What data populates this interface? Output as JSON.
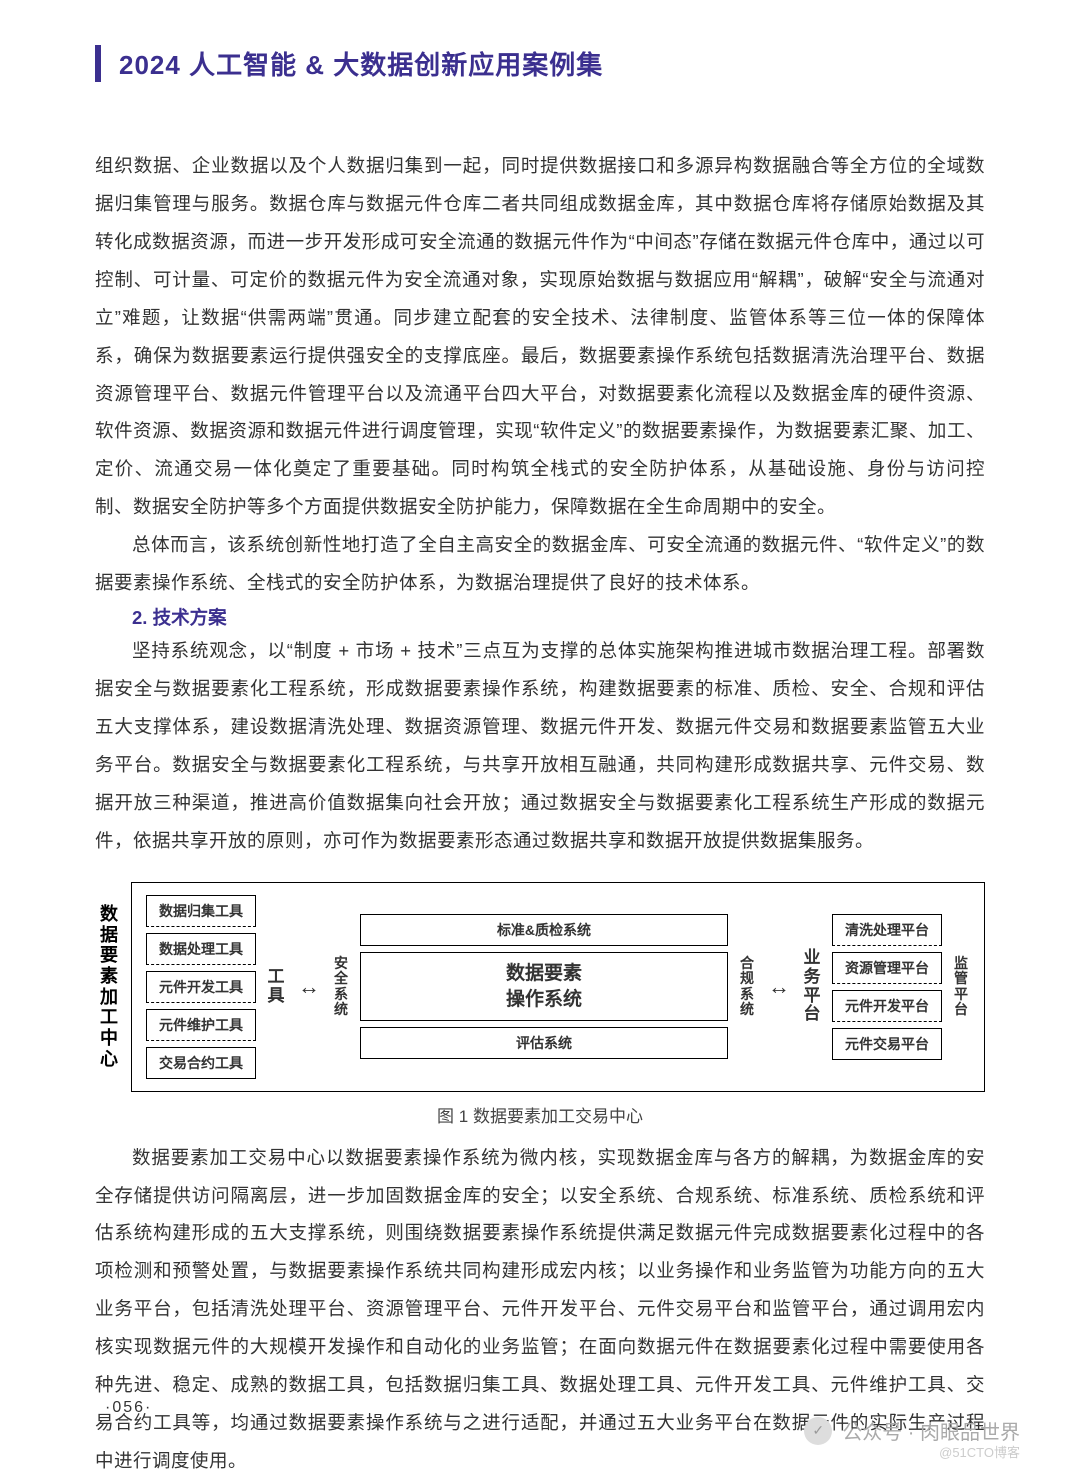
{
  "header": {
    "title": "2024 人工智能 & 大数据创新应用案例集"
  },
  "paragraphs": {
    "p1": "组织数据、企业数据以及个人数据归集到一起，同时提供数据接口和多源异构数据融合等全方位的全域数据归集管理与服务。数据仓库与数据元件仓库二者共同组成数据金库，其中数据仓库将存储原始数据及其转化成数据资源，而进一步开发形成可安全流通的数据元件作为“中间态”存储在数据元件仓库中，通过以可控制、可计量、可定价的数据元件为安全流通对象，实现原始数据与数据应用“解耦”，破解“安全与流通对立”难题，让数据“供需两端”贯通。同步建立配套的安全技术、法律制度、监管体系等三位一体的保障体系，确保为数据要素运行提供强安全的支撑底座。最后，数据要素操作系统包括数据清洗治理平台、数据资源管理平台、数据元件管理平台以及流通平台四大平台，对数据要素化流程以及数据金库的硬件资源、软件资源、数据资源和数据元件进行调度管理，实现“软件定义”的数据要素操作，为数据要素汇聚、加工、定价、流通交易一体化奠定了重要基础。同时构筑全栈式的安全防护体系，从基础设施、身份与访问控制、数据安全防护等多个方面提供数据安全防护能力，保障数据在全生命周期中的安全。",
    "p2": "总体而言，该系统创新性地打造了全自主高安全的数据金库、可安全流通的数据元件、“软件定义”的数据要素操作系统、全栈式的安全防护体系，为数据治理提供了良好的技术体系。",
    "p3": "坚持系统观念，以“制度 + 市场 + 技术”三点互为支撑的总体实施架构推进城市数据治理工程。部署数据安全与数据要素化工程系统，形成数据要素操作系统，构建数据要素的标准、质检、安全、合规和评估五大支撑体系，建设数据清洗处理、数据资源管理、数据元件开发、数据元件交易和数据要素监管五大业务平台。数据安全与数据要素化工程系统，与共享开放相互融通，共同构建形成数据共享、元件交易、数据开放三种渠道，推进高价值数据集向社会开放；通过数据安全与数据要素化工程系统生产形成的数据元件，依据共享开放的原则，亦可作为数据要素形态通过数据共享和数据开放提供数据集服务。",
    "p4": "数据要素加工交易中心以数据要素操作系统为微内核，实现数据金库与各方的解耦，为数据金库的安全存储提供访问隔离层，进一步加固数据金库的安全；以安全系统、合规系统、标准系统、质检系统和评估系统构建形成的五大支撑系统，则围绕数据要素操作系统提供满足数据元件完成数据要素化过程中的各项检测和预警处置，与数据要素操作系统共同构建形成宏内核；以业务操作和业务监管为功能方向的五大业务平台，包括清洗处理平台、资源管理平台、元件开发平台、元件交易平台和监管平台，通过调用宏内核实现数据元件的大规模开发操作和自动化的业务监管；在面向数据元件在数据要素化过程中需要使用各种先进、稳定、成熟的数据工具，包括数据归集工具、数据处理工具、元件开发工具、元件维护工具、交易合约工具等，均通过数据要素操作系统与之进行适配，并通过五大业务平台在数据元件的实际生产过程中进行调度使用。"
  },
  "section": {
    "heading2": "2. 技术方案"
  },
  "diagram": {
    "outer_label": "数据要素加工中心",
    "tools": [
      "数据归集工具",
      "数据处理工具",
      "元件开发工具",
      "元件维护工具",
      "交易合约工具"
    ],
    "tools_label": "工具",
    "left_sys": "安全系统",
    "right_sys": "合规系统",
    "top_box": "标准&质检系统",
    "core_line1": "数据要素",
    "core_line2": "操作系统",
    "bottom_box": "评估系统",
    "biz_label": "业务平台",
    "biz": [
      "清洗处理平台",
      "资源管理平台",
      "元件开发平台",
      "元件交易平台"
    ],
    "sup_label": "监管平台",
    "caption": "图 1  数据要素加工交易中心",
    "arrow": "↔"
  },
  "pageNumber": "·056·",
  "watermark": {
    "label": "公众号 · 肉眼品世界",
    "sub": "@51CTO博客",
    "icon": "✓"
  }
}
